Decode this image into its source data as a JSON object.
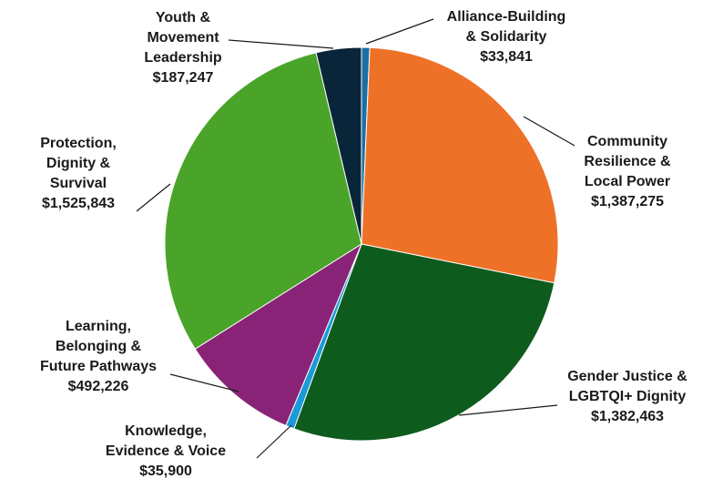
{
  "chart_data": {
    "type": "pie",
    "title": "",
    "colors": [
      "#1a6fa3",
      "#ee7128",
      "#0e5b1e",
      "#1a9ad8",
      "#882377",
      "#4aa42a",
      "#08253a"
    ],
    "slices": [
      {
        "label": [
          "Alliance-Building",
          "& Solidarity"
        ],
        "value": 33841,
        "value_text": "$33,841"
      },
      {
        "label": [
          "Community",
          "Resilience &",
          "Local Power"
        ],
        "value": 1387275,
        "value_text": "$1,387,275"
      },
      {
        "label": [
          "Gender Justice &",
          "LGBTQI+ Dignity"
        ],
        "value": 1382463,
        "value_text": "$1,382,463"
      },
      {
        "label": [
          "Knowledge,",
          "Evidence & Voice"
        ],
        "value": 35900,
        "value_text": "$35,900"
      },
      {
        "label": [
          "Learning,",
          "Belonging &",
          "Future Pathways"
        ],
        "value": 492226,
        "value_text": "$492,226"
      },
      {
        "label": [
          "Protection,",
          "Dignity &",
          "Survival"
        ],
        "value": 1525843,
        "value_text": "$1,525,843"
      },
      {
        "label": [
          "Youth &",
          "Movement",
          "Leadership"
        ],
        "value": 187247,
        "value_text": "$187,247"
      }
    ]
  }
}
